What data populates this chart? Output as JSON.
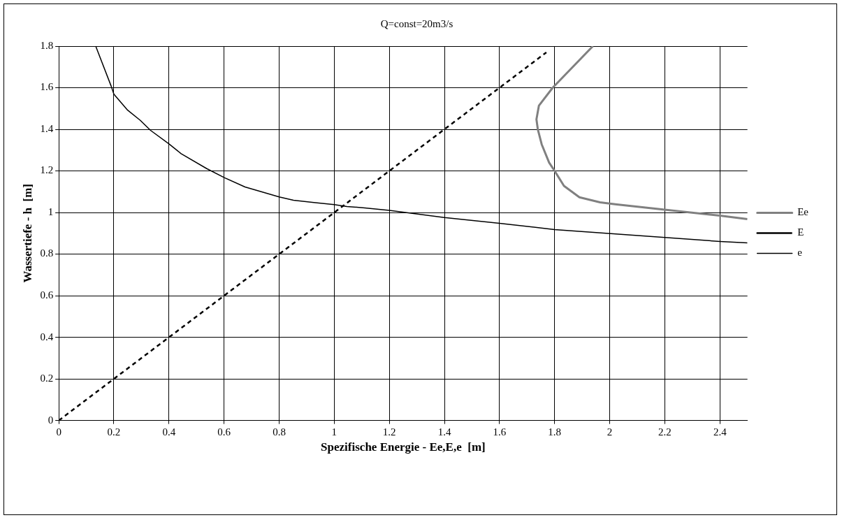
{
  "chart_data": {
    "type": "line",
    "title": "Q=const=20m3/s",
    "xlabel": "Spezifische Energie - Ee,E,e  [m]",
    "ylabel": "Wassertiefe - h  [m]",
    "xlim": [
      0,
      2.5
    ],
    "xticks": [
      0,
      0.2,
      0.4,
      0.6,
      0.8,
      1,
      1.2,
      1.4,
      1.6,
      1.8,
      2,
      2.2,
      2.4
    ],
    "ylim": [
      0,
      1.8
    ],
    "yticks": [
      0,
      0.2,
      0.4,
      0.6,
      0.8,
      1,
      1.2,
      1.4,
      1.6,
      1.8
    ],
    "grid": true,
    "legend": "right",
    "marker": "none",
    "series": [
      {
        "name": "Ee",
        "color": "#808080",
        "line_style": "solid",
        "x": [
          1.939,
          1.793,
          1.743,
          1.734,
          1.739,
          1.753,
          1.78,
          1.8,
          1.834,
          1.89,
          1.965,
          2.02,
          2.13,
          2.24,
          2.4,
          2.5
        ],
        "values": [
          1.8,
          1.6,
          1.514,
          1.448,
          1.4,
          1.328,
          1.24,
          1.2,
          1.128,
          1.073,
          1.049,
          1.04,
          1.024,
          1.008,
          0.985,
          0.968
        ]
      },
      {
        "name": "E",
        "color": "#000000",
        "line_style": "dashed",
        "x": [
          0,
          1.77
        ],
        "values": [
          0,
          1.77
        ]
      },
      {
        "name": "e",
        "color": "#000000",
        "line_style": "solid",
        "x": [
          0.134,
          0.19,
          0.2,
          0.25,
          0.296,
          0.333,
          0.4,
          0.444,
          0.537,
          0.602,
          0.676,
          0.8,
          0.852,
          0.926,
          1.0,
          1.046,
          1.111,
          1.2,
          1.4,
          1.6,
          1.8,
          2.4,
          2.5
        ],
        "values": [
          1.8,
          1.608,
          1.569,
          1.492,
          1.443,
          1.395,
          1.33,
          1.283,
          1.211,
          1.167,
          1.123,
          1.075,
          1.059,
          1.048,
          1.038,
          1.029,
          1.022,
          1.01,
          0.976,
          0.948,
          0.918,
          0.861,
          0.854
        ]
      }
    ]
  }
}
